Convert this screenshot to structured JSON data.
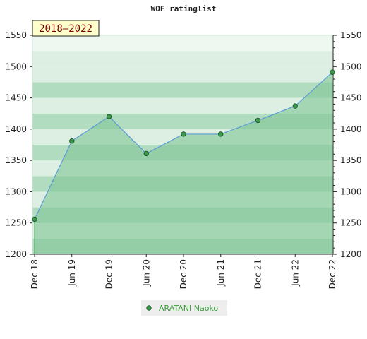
{
  "chart_data": {
    "type": "area",
    "title": "WOF ratinglist",
    "badge": "2018–2022",
    "x": [
      "Dec 18",
      "Jun 19",
      "Dec 19",
      "Jun 20",
      "Dec 20",
      "Jun 21",
      "Dec 21",
      "Jun 22",
      "Dec 22"
    ],
    "series": [
      {
        "name": "ARATANI Naoko",
        "values": [
          1256,
          1381,
          1420,
          1361,
          1392,
          1392,
          1414,
          1437,
          1491
        ]
      }
    ],
    "ylim": [
      1200,
      1550
    ],
    "yticks": [
      1200,
      1250,
      1300,
      1350,
      1400,
      1450,
      1500,
      1550
    ],
    "grid": true,
    "dual_y_axis": true,
    "legend_position": "bottom-center",
    "colors": {
      "line": "#5b9bd5",
      "marker_fill": "#3c9c4c",
      "area_fill": "#7fc596",
      "band_dark": "#b2dcbf",
      "band_light": "#dcefe2",
      "band_lighter": "#eef8f1",
      "badge_bg": "#ffffcc"
    }
  }
}
